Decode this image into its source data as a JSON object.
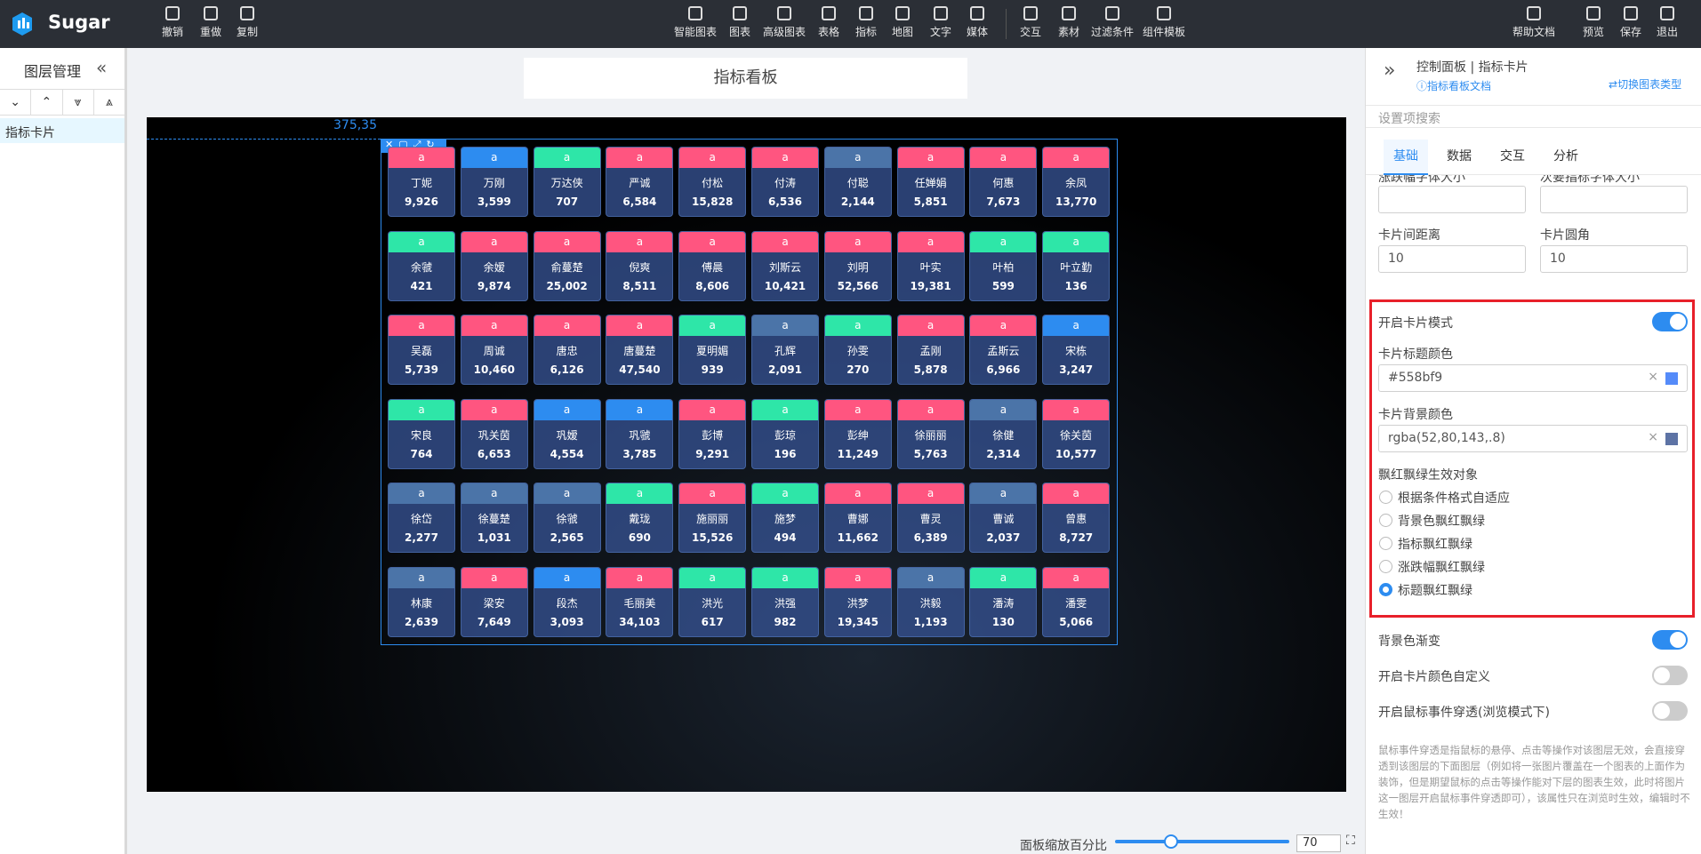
{
  "app": {
    "name": "Sugar"
  },
  "toolbar": {
    "left": [
      "撤销",
      "重做",
      "复制"
    ],
    "center": [
      "智能图表",
      "图表",
      "高级图表",
      "表格",
      "指标",
      "地图",
      "文字",
      "媒体",
      "交互",
      "素材",
      "过滤条件",
      "组件模板"
    ],
    "right": [
      "帮助文档",
      "预览",
      "保存",
      "退出"
    ]
  },
  "layers": {
    "title": "图层管理",
    "items": [
      "指标卡片"
    ]
  },
  "canvas": {
    "title": "指标看板",
    "position": "375,35",
    "cards": [
      {
        "title": "a",
        "name": "丁妮",
        "value": "9,926",
        "color": "#ff5580"
      },
      {
        "title": "a",
        "name": "万刚",
        "value": "3,599",
        "color": "#2d8cf0"
      },
      {
        "title": "a",
        "name": "万达侠",
        "value": "707",
        "color": "#2ee6a8"
      },
      {
        "title": "a",
        "name": "严诚",
        "value": "6,584",
        "color": "#ff5580"
      },
      {
        "title": "a",
        "name": "付松",
        "value": "15,828",
        "color": "#ff5580"
      },
      {
        "title": "a",
        "name": "付涛",
        "value": "6,536",
        "color": "#ff5580"
      },
      {
        "title": "a",
        "name": "付聪",
        "value": "2,144",
        "color": "#4b74a8"
      },
      {
        "title": "a",
        "name": "任婵娟",
        "value": "5,851",
        "color": "#ff5580"
      },
      {
        "title": "a",
        "name": "何惠",
        "value": "7,673",
        "color": "#ff5580"
      },
      {
        "title": "a",
        "name": "余凤",
        "value": "13,770",
        "color": "#ff5580"
      },
      {
        "title": "a",
        "name": "余虢",
        "value": "421",
        "color": "#2ee6a8"
      },
      {
        "title": "a",
        "name": "余嫒",
        "value": "9,874",
        "color": "#ff5580"
      },
      {
        "title": "a",
        "name": "俞蔓楚",
        "value": "25,002",
        "color": "#ff5580"
      },
      {
        "title": "a",
        "name": "倪爽",
        "value": "8,511",
        "color": "#ff5580"
      },
      {
        "title": "a",
        "name": "傅晨",
        "value": "8,606",
        "color": "#ff5580"
      },
      {
        "title": "a",
        "name": "刘斯云",
        "value": "10,421",
        "color": "#ff5580"
      },
      {
        "title": "a",
        "name": "刘明",
        "value": "52,566",
        "color": "#ff5580"
      },
      {
        "title": "a",
        "name": "叶实",
        "value": "19,381",
        "color": "#ff5580"
      },
      {
        "title": "a",
        "name": "叶柏",
        "value": "599",
        "color": "#2ee6a8"
      },
      {
        "title": "a",
        "name": "叶立勤",
        "value": "136",
        "color": "#2ee6a8"
      },
      {
        "title": "a",
        "name": "吴磊",
        "value": "5,739",
        "color": "#ff5580"
      },
      {
        "title": "a",
        "name": "周诚",
        "value": "10,460",
        "color": "#ff5580"
      },
      {
        "title": "a",
        "name": "唐忠",
        "value": "6,126",
        "color": "#ff5580"
      },
      {
        "title": "a",
        "name": "唐蔓楚",
        "value": "47,540",
        "color": "#ff5580"
      },
      {
        "title": "a",
        "name": "夏明媚",
        "value": "939",
        "color": "#2ee6a8"
      },
      {
        "title": "a",
        "name": "孔辉",
        "value": "2,091",
        "color": "#4b74a8"
      },
      {
        "title": "a",
        "name": "孙雯",
        "value": "270",
        "color": "#2ee6a8"
      },
      {
        "title": "a",
        "name": "孟刚",
        "value": "5,878",
        "color": "#ff5580"
      },
      {
        "title": "a",
        "name": "孟斯云",
        "value": "6,966",
        "color": "#ff5580"
      },
      {
        "title": "a",
        "name": "宋栋",
        "value": "3,247",
        "color": "#2d8cf0"
      },
      {
        "title": "a",
        "name": "宋良",
        "value": "764",
        "color": "#2ee6a8"
      },
      {
        "title": "a",
        "name": "巩关茵",
        "value": "6,653",
        "color": "#ff5580"
      },
      {
        "title": "a",
        "name": "巩嫒",
        "value": "4,554",
        "color": "#2d8cf0"
      },
      {
        "title": "a",
        "name": "巩虢",
        "value": "3,785",
        "color": "#2d8cf0"
      },
      {
        "title": "a",
        "name": "彭博",
        "value": "9,291",
        "color": "#ff5580"
      },
      {
        "title": "a",
        "name": "彭琼",
        "value": "196",
        "color": "#2ee6a8"
      },
      {
        "title": "a",
        "name": "彭绅",
        "value": "11,249",
        "color": "#ff5580"
      },
      {
        "title": "a",
        "name": "徐丽丽",
        "value": "5,763",
        "color": "#ff5580"
      },
      {
        "title": "a",
        "name": "徐健",
        "value": "2,314",
        "color": "#4b74a8"
      },
      {
        "title": "a",
        "name": "徐关茵",
        "value": "10,577",
        "color": "#ff5580"
      },
      {
        "title": "a",
        "name": "徐岱",
        "value": "2,277",
        "color": "#4b74a8"
      },
      {
        "title": "a",
        "name": "徐蔓楚",
        "value": "1,031",
        "color": "#4b74a8"
      },
      {
        "title": "a",
        "name": "徐虢",
        "value": "2,565",
        "color": "#4b74a8"
      },
      {
        "title": "a",
        "name": "戴珑",
        "value": "690",
        "color": "#2ee6a8"
      },
      {
        "title": "a",
        "name": "施丽丽",
        "value": "15,526",
        "color": "#ff5580"
      },
      {
        "title": "a",
        "name": "施梦",
        "value": "494",
        "color": "#2ee6a8"
      },
      {
        "title": "a",
        "name": "曹娜",
        "value": "11,662",
        "color": "#ff5580"
      },
      {
        "title": "a",
        "name": "曹灵",
        "value": "6,389",
        "color": "#ff5580"
      },
      {
        "title": "a",
        "name": "曹诚",
        "value": "2,037",
        "color": "#4b74a8"
      },
      {
        "title": "a",
        "name": "曾惠",
        "value": "8,727",
        "color": "#ff5580"
      },
      {
        "title": "a",
        "name": "林康",
        "value": "2,639",
        "color": "#4b74a8"
      },
      {
        "title": "a",
        "name": "梁安",
        "value": "7,649",
        "color": "#ff5580"
      },
      {
        "title": "a",
        "name": "段杰",
        "value": "3,093",
        "color": "#2d8cf0"
      },
      {
        "title": "a",
        "name": "毛丽美",
        "value": "34,103",
        "color": "#ff5580"
      },
      {
        "title": "a",
        "name": "洪光",
        "value": "617",
        "color": "#2ee6a8"
      },
      {
        "title": "a",
        "name": "洪强",
        "value": "982",
        "color": "#2ee6a8"
      },
      {
        "title": "a",
        "name": "洪梦",
        "value": "19,345",
        "color": "#ff5580"
      },
      {
        "title": "a",
        "name": "洪毅",
        "value": "1,193",
        "color": "#4b74a8"
      },
      {
        "title": "a",
        "name": "潘涛",
        "value": "130",
        "color": "#2ee6a8"
      },
      {
        "title": "a",
        "name": "潘雯",
        "value": "5,066",
        "color": "#ff5580"
      }
    ]
  },
  "panel": {
    "title": "控制面板 | 指标卡片",
    "doc_link": "指标看板文档",
    "switch": "切换图表类型",
    "search": "设置项搜索",
    "tabs": [
      "基础",
      "数据",
      "交互",
      "分析"
    ],
    "font_labels": [
      "涨跌幅字体大小",
      "次要指标字体大小"
    ],
    "spacing_label": "卡片间距离",
    "spacing": "10",
    "radius_label": "卡片圆角",
    "radius": "10",
    "card_mode": {
      "label": "开启卡片模式",
      "on": true
    },
    "title_color_label": "卡片标题颜色",
    "title_color": "#558bf9",
    "bg_color_label": "卡片背景颜色",
    "bg_color": "rgba(52,80,143,.8)",
    "target_label": "飘红飘绿生效对象",
    "targets": [
      "根据条件格式自适应",
      "背景色飘红飘绿",
      "指标飘红飘绿",
      "涨跌幅飘红飘绿",
      "标题飘红飘绿"
    ],
    "target_selected": 4,
    "toggles": [
      {
        "label": "背景色渐变",
        "on": true
      },
      {
        "label": "开启卡片颜色自定义",
        "on": false
      },
      {
        "label": "开启鼠标事件穿透(浏览模式下)",
        "on": false
      }
    ],
    "note": "鼠标事件穿透是指鼠标的悬停、点击等操作对该图层无效，会直接穿透到该图层的下面图层（例如将一张图片覆盖在一个图表的上面作为装饰，但是期望鼠标的点击等操作能对下层的图表生效，此时将图片这一图层开启鼠标事件穿透即可），该属性只在浏览时生效，编辑时不生效！"
  },
  "zoom": {
    "label": "面板缩放百分比",
    "value": "70"
  }
}
